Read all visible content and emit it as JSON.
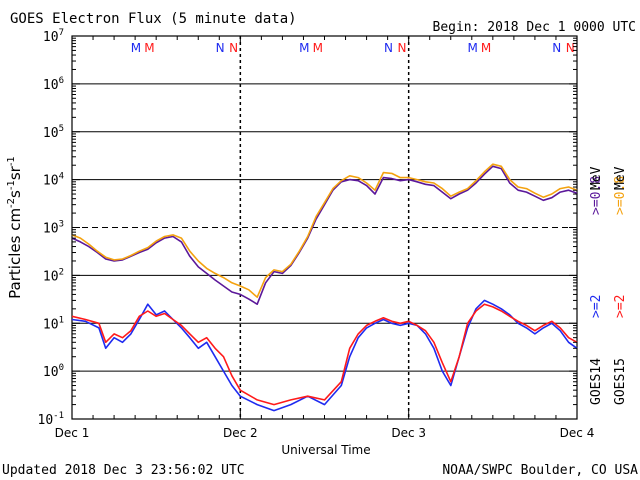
{
  "header": {
    "title": "GOES Electron Flux (5 minute data)",
    "begin": "Begin: 2018 Dec 1 0000 UTC"
  },
  "footer": {
    "updated": "Updated 2018 Dec  3 23:56:02 UTC",
    "credit": "NOAA/SWPC Boulder, CO USA"
  },
  "colors": {
    "goes14_mev08": "#5b189a",
    "goes15_mev08": "#f4a20f",
    "goes14_mev2": "#1f2bf0",
    "goes15_mev2": "#ff1a1a",
    "marker_m": "#1f2bf0",
    "marker_m2": "#ff1a1a",
    "marker_n": "#1f2bf0",
    "marker_n2": "#ff1a1a"
  },
  "chart_data": {
    "type": "line",
    "title": "GOES Electron Flux (5 minute data)",
    "xlabel": "Universal Time",
    "ylabel": "Particles cm-2s-1sr-1",
    "ylabel_parts": [
      "Particles cm",
      "-2",
      "s",
      "-1",
      "sr",
      "-1"
    ],
    "y_scale": "log",
    "ylim": [
      0.1,
      10000000
    ],
    "xlim": [
      0,
      3
    ],
    "x_ticks": [
      {
        "value": 0,
        "label": "Dec 1"
      },
      {
        "value": 1,
        "label": "Dec 2"
      },
      {
        "value": 2,
        "label": "Dec 3"
      },
      {
        "value": 3,
        "label": "Dec 4"
      }
    ],
    "y_ticks": [
      {
        "exp": "-1",
        "base": "10"
      },
      {
        "exp": "0",
        "base": "10"
      },
      {
        "exp": "1",
        "base": "10"
      },
      {
        "exp": "2",
        "base": "10"
      },
      {
        "exp": "3",
        "base": "10"
      },
      {
        "exp": "4",
        "base": "10"
      },
      {
        "exp": "5",
        "base": "10"
      },
      {
        "exp": "6",
        "base": "10"
      },
      {
        "exp": "7",
        "base": "10"
      }
    ],
    "threshold_line": 1000,
    "day_markers": [
      {
        "x": 0.38,
        "text": "M",
        "color": "#1f2bf0"
      },
      {
        "x": 0.46,
        "text": "M",
        "color": "#ff1a1a"
      },
      {
        "x": 0.88,
        "text": "N",
        "color": "#1f2bf0"
      },
      {
        "x": 0.96,
        "text": "N",
        "color": "#ff1a1a"
      },
      {
        "x": 1.38,
        "text": "M",
        "color": "#1f2bf0"
      },
      {
        "x": 1.46,
        "text": "M",
        "color": "#ff1a1a"
      },
      {
        "x": 1.88,
        "text": "N",
        "color": "#1f2bf0"
      },
      {
        "x": 1.96,
        "text": "N",
        "color": "#ff1a1a"
      },
      {
        "x": 2.38,
        "text": "M",
        "color": "#1f2bf0"
      },
      {
        "x": 2.46,
        "text": "M",
        "color": "#ff1a1a"
      },
      {
        "x": 2.88,
        "text": "N",
        "color": "#1f2bf0"
      },
      {
        "x": 2.96,
        "text": "N",
        "color": "#ff1a1a"
      }
    ],
    "legend": {
      "goes14": "GOES14",
      "goes15": "GOES15",
      "goes14_mev2": ">=2",
      "goes15_mev2": ">=2",
      "goes14_mev08": ">=0.8",
      "goes15_mev08": ">=0.8",
      "unit": "MeV"
    },
    "series": [
      {
        "name": "GOES14 >=0.8 MeV",
        "color": "#5b189a",
        "x": [
          0,
          0.05,
          0.1,
          0.15,
          0.2,
          0.25,
          0.3,
          0.35,
          0.4,
          0.45,
          0.5,
          0.55,
          0.6,
          0.65,
          0.7,
          0.75,
          0.8,
          0.85,
          0.9,
          0.95,
          1.0,
          1.05,
          1.1,
          1.15,
          1.2,
          1.25,
          1.3,
          1.35,
          1.4,
          1.45,
          1.5,
          1.55,
          1.6,
          1.65,
          1.7,
          1.75,
          1.8,
          1.85,
          1.9,
          1.95,
          2.0,
          2.05,
          2.1,
          2.15,
          2.2,
          2.25,
          2.3,
          2.35,
          2.4,
          2.45,
          2.5,
          2.55,
          2.6,
          2.65,
          2.7,
          2.75,
          2.8,
          2.85,
          2.9,
          2.95,
          3.0
        ],
        "values": [
          600,
          500,
          400,
          300,
          220,
          200,
          210,
          250,
          300,
          350,
          480,
          600,
          650,
          500,
          250,
          150,
          110,
          80,
          60,
          45,
          40,
          32,
          25,
          70,
          120,
          110,
          160,
          300,
          600,
          1500,
          3000,
          6000,
          9000,
          10000,
          9500,
          7500,
          5000,
          11000,
          10500,
          9500,
          10000,
          9000,
          8000,
          7500,
          5500,
          4000,
          5000,
          6000,
          8500,
          13000,
          19000,
          17000,
          8500,
          6000,
          5500,
          4500,
          3700,
          4200,
          5500,
          6000,
          5200
        ]
      },
      {
        "name": "GOES15 >=0.8 MeV",
        "color": "#f4a20f",
        "x": [
          0,
          0.05,
          0.1,
          0.15,
          0.2,
          0.25,
          0.3,
          0.35,
          0.4,
          0.45,
          0.5,
          0.55,
          0.6,
          0.65,
          0.7,
          0.75,
          0.8,
          0.85,
          0.9,
          0.95,
          1.0,
          1.05,
          1.1,
          1.15,
          1.2,
          1.25,
          1.3,
          1.35,
          1.4,
          1.45,
          1.5,
          1.55,
          1.6,
          1.65,
          1.7,
          1.75,
          1.8,
          1.85,
          1.9,
          1.95,
          2.0,
          2.05,
          2.1,
          2.15,
          2.2,
          2.25,
          2.3,
          2.35,
          2.4,
          2.45,
          2.5,
          2.55,
          2.6,
          2.65,
          2.7,
          2.75,
          2.8,
          2.85,
          2.9,
          2.95,
          3.0
        ],
        "values": [
          700,
          600,
          450,
          320,
          240,
          210,
          220,
          260,
          320,
          380,
          520,
          650,
          700,
          600,
          320,
          200,
          140,
          110,
          90,
          70,
          60,
          50,
          35,
          90,
          130,
          120,
          170,
          320,
          650,
          1700,
          3300,
          6500,
          9500,
          12000,
          11000,
          8500,
          6000,
          14000,
          13500,
          11000,
          11000,
          10000,
          9000,
          8500,
          6500,
          4500,
          5500,
          6500,
          9500,
          14500,
          21000,
          19000,
          10000,
          7000,
          6500,
          5200,
          4300,
          5000,
          6500,
          7000,
          6000
        ]
      },
      {
        "name": "GOES14 >=2 MeV",
        "color": "#1f2bf0",
        "x": [
          0,
          0.08,
          0.16,
          0.2,
          0.25,
          0.3,
          0.35,
          0.4,
          0.45,
          0.5,
          0.55,
          0.6,
          0.65,
          0.7,
          0.75,
          0.8,
          0.85,
          0.9,
          0.95,
          1.0,
          1.1,
          1.2,
          1.3,
          1.4,
          1.5,
          1.6,
          1.65,
          1.7,
          1.75,
          1.8,
          1.85,
          1.9,
          1.95,
          2.0,
          2.05,
          2.1,
          2.15,
          2.2,
          2.25,
          2.3,
          2.35,
          2.4,
          2.45,
          2.5,
          2.55,
          2.6,
          2.65,
          2.7,
          2.75,
          2.8,
          2.85,
          2.9,
          2.95,
          3.0
        ],
        "values": [
          12,
          11,
          8,
          3,
          5,
          4,
          6,
          12,
          25,
          15,
          18,
          12,
          8,
          5,
          3,
          4,
          2,
          1,
          0.5,
          0.3,
          0.2,
          0.15,
          0.2,
          0.3,
          0.2,
          0.5,
          2,
          5,
          8,
          10,
          12,
          10,
          9,
          10,
          9,
          6,
          3,
          1,
          0.5,
          2,
          8,
          20,
          30,
          25,
          20,
          15,
          10,
          8,
          6,
          8,
          10,
          7,
          4,
          3
        ]
      },
      {
        "name": "GOES15 >=2 MeV",
        "color": "#ff1a1a",
        "x": [
          0,
          0.08,
          0.16,
          0.2,
          0.25,
          0.3,
          0.35,
          0.4,
          0.45,
          0.5,
          0.55,
          0.6,
          0.65,
          0.7,
          0.75,
          0.8,
          0.85,
          0.9,
          0.95,
          1.0,
          1.1,
          1.2,
          1.3,
          1.4,
          1.5,
          1.6,
          1.65,
          1.7,
          1.75,
          1.8,
          1.85,
          1.9,
          1.95,
          2.0,
          2.05,
          2.1,
          2.15,
          2.2,
          2.25,
          2.3,
          2.35,
          2.4,
          2.45,
          2.5,
          2.55,
          2.6,
          2.65,
          2.7,
          2.75,
          2.8,
          2.85,
          2.9,
          2.95,
          3.0
        ],
        "values": [
          14,
          12,
          10,
          4,
          6,
          5,
          7,
          14,
          18,
          14,
          16,
          12,
          9,
          6,
          4,
          5,
          3,
          2,
          0.8,
          0.4,
          0.25,
          0.2,
          0.25,
          0.3,
          0.25,
          0.6,
          3,
          6,
          9,
          11,
          13,
          11,
          10,
          11,
          9,
          7,
          4,
          1.5,
          0.6,
          2,
          10,
          18,
          25,
          22,
          18,
          14,
          11,
          9,
          7,
          9,
          11,
          8,
          5,
          4
        ]
      }
    ]
  }
}
